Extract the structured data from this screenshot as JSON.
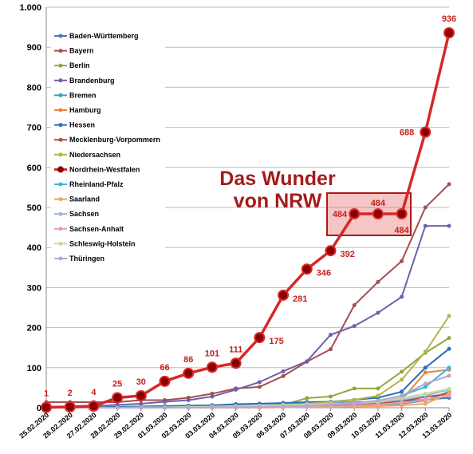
{
  "chart_data": {
    "type": "line",
    "categories": [
      "25.02.2020",
      "26.02.2020",
      "27.02.2020",
      "28.02.2020",
      "29.02.2020",
      "01.03.2020",
      "02.03.2020",
      "03.03.2020",
      "04.03.2020",
      "05.03.2020",
      "06.03.2020",
      "07.03.2020",
      "08.03.2020",
      "09.03.2020",
      "10.03.2020",
      "11.03.2020",
      "12.03.2020",
      "13.03.2020"
    ],
    "ylim": [
      0,
      1000
    ],
    "yticks": [
      0,
      100,
      200,
      300,
      400,
      500,
      600,
      700,
      800,
      900,
      {
        "value": 1000,
        "label": "1.000"
      }
    ],
    "grid": true,
    "legend": "top-left",
    "annotation": [
      "Das Wunder",
      "von NRW"
    ],
    "highlight_series": 9,
    "series": [
      {
        "name": "Baden-Württemberg",
        "color": "#4472c4",
        "values": [
          1,
          1,
          1,
          2,
          3,
          4,
          5,
          6,
          8,
          10,
          11,
          12,
          12,
          14,
          16,
          17,
          20,
          25
        ]
      },
      {
        "name": "Bayern",
        "color": "#a5504f",
        "values": [
          14,
          14,
          14,
          14,
          19,
          19,
          25,
          35,
          48,
          52,
          79,
          115,
          146,
          256,
          314,
          366,
          500,
          558
        ]
      },
      {
        "name": "Berlin",
        "color": "#8fa83e",
        "values": [
          0,
          0,
          0,
          0,
          0,
          0,
          1,
          1,
          1,
          3,
          7,
          24,
          28,
          48,
          48,
          90,
          137,
          174
        ]
      },
      {
        "name": "Brandenburg",
        "color": "#7060a8",
        "values": [
          1,
          1,
          4,
          7,
          10,
          15,
          19,
          28,
          45,
          64,
          91,
          116,
          182,
          204,
          237,
          277,
          454,
          454
        ]
      },
      {
        "name": "Bremen",
        "color": "#3aa0b8",
        "values": [
          0,
          0,
          0,
          0,
          0,
          0,
          0,
          0,
          1,
          1,
          2,
          3,
          4,
          5,
          6,
          10,
          18,
          40
        ]
      },
      {
        "name": "Hamburg",
        "color": "#e8873a",
        "values": [
          0,
          0,
          1,
          1,
          1,
          2,
          2,
          2,
          3,
          3,
          3,
          4,
          5,
          8,
          12,
          20,
          88,
          95
        ]
      },
      {
        "name": "Hessen",
        "color": "#2c6fbb",
        "values": [
          0,
          0,
          0,
          2,
          3,
          4,
          5,
          6,
          9,
          10,
          12,
          14,
          15,
          20,
          25,
          40,
          100,
          147
        ]
      },
      {
        "name": "Mecklenburg-Vorpommern",
        "color": "#b64d4b",
        "values": [
          0,
          0,
          0,
          0,
          0,
          0,
          0,
          0,
          1,
          2,
          3,
          4,
          5,
          7,
          10,
          17,
          27,
          35
        ]
      },
      {
        "name": "Niedersachsen",
        "color": "#b5b54a",
        "values": [
          0,
          0,
          0,
          0,
          0,
          0,
          1,
          1,
          2,
          4,
          8,
          10,
          14,
          20,
          30,
          70,
          140,
          229
        ]
      },
      {
        "name": "Nordrhein-Westfalen",
        "color": "#d62828",
        "values": [
          1,
          2,
          4,
          25,
          30,
          66,
          86,
          101,
          111,
          175,
          281,
          346,
          392,
          484,
          484,
          484,
          688,
          936
        ]
      },
      {
        "name": "Rheinland-Pfalz",
        "color": "#3ab3d6",
        "values": [
          0,
          0,
          0,
          0,
          1,
          1,
          2,
          2,
          3,
          4,
          6,
          8,
          10,
          12,
          15,
          30,
          52,
          100
        ]
      },
      {
        "name": "Saarland",
        "color": "#f5a35b",
        "values": [
          0,
          0,
          0,
          0,
          0,
          0,
          0,
          0,
          0,
          0,
          1,
          2,
          2,
          3,
          4,
          6,
          10,
          35
        ]
      },
      {
        "name": "Sachsen",
        "color": "#9fb8d8",
        "values": [
          0,
          0,
          0,
          0,
          0,
          0,
          0,
          1,
          1,
          2,
          3,
          5,
          8,
          10,
          14,
          20,
          30,
          45
        ]
      },
      {
        "name": "Sachsen-Anhalt",
        "color": "#e8a0a0",
        "values": [
          0,
          0,
          0,
          0,
          0,
          0,
          0,
          0,
          0,
          0,
          1,
          2,
          3,
          5,
          8,
          12,
          20,
          30
        ]
      },
      {
        "name": "Schleswig-Holstein",
        "color": "#c4d9a3",
        "values": [
          0,
          0,
          0,
          0,
          1,
          1,
          2,
          3,
          4,
          5,
          6,
          8,
          10,
          12,
          16,
          25,
          35,
          47
        ]
      },
      {
        "name": "Thüringen",
        "color": "#b8a5cf",
        "values": [
          0,
          0,
          0,
          0,
          0,
          0,
          0,
          1,
          1,
          2,
          3,
          5,
          8,
          12,
          18,
          30,
          60,
          80
        ]
      }
    ]
  }
}
